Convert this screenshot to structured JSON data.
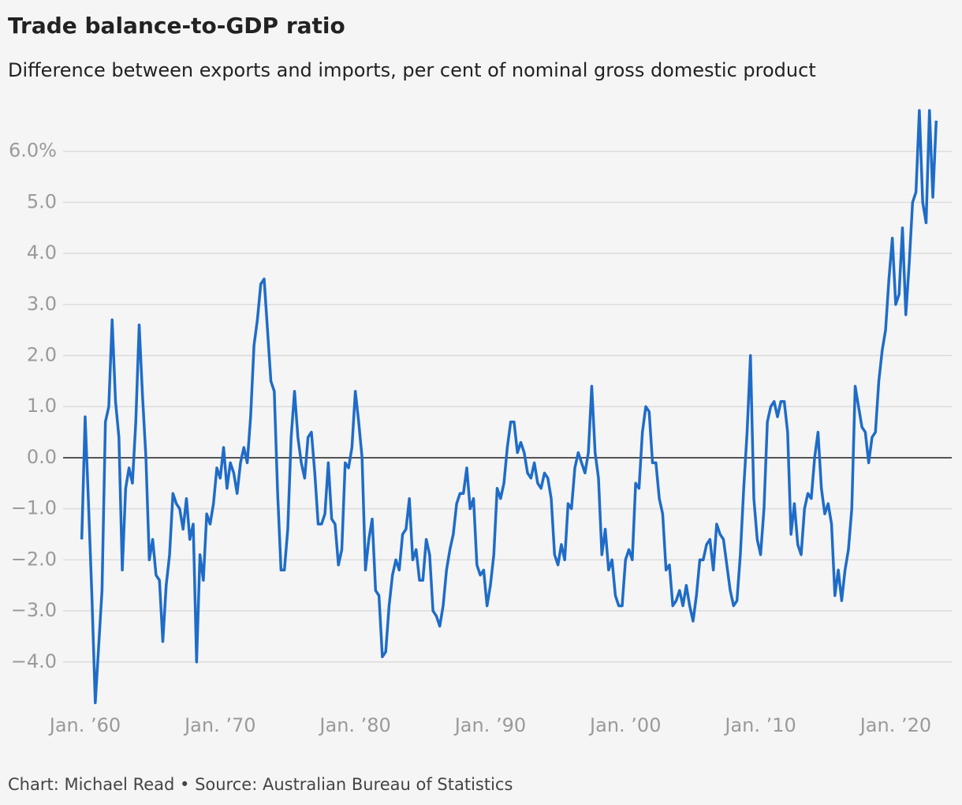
{
  "chart_data": {
    "type": "line",
    "title": "Trade balance-to-GDP ratio",
    "subtitle": "Difference between exports and imports, per cent of nominal gross domestic product",
    "footer": "Chart: Michael Read • Source: Australian Bureau of Statistics",
    "color": "#1f6cc8",
    "grid": true,
    "xlim": [
      1959.5,
      2023.25
    ],
    "xticks": [
      {
        "value": 1960,
        "label": "Jan. ’60"
      },
      {
        "value": 1970,
        "label": "Jan. ’70"
      },
      {
        "value": 1980,
        "label": "Jan. ’80"
      },
      {
        "value": 1990,
        "label": "Jan. ’90"
      },
      {
        "value": 2000,
        "label": "Jan. ’00"
      },
      {
        "value": 2010,
        "label": "Jan. ’10"
      },
      {
        "value": 2020,
        "label": "Jan. ’20"
      }
    ],
    "ylim": [
      -4.9,
      7.0
    ],
    "yticks": [
      {
        "value": -4,
        "label": "−4.0"
      },
      {
        "value": -3,
        "label": "−3.0"
      },
      {
        "value": -2,
        "label": "−2.0"
      },
      {
        "value": -1,
        "label": "−1.0"
      },
      {
        "value": 0,
        "label": "0.0"
      },
      {
        "value": 1,
        "label": "1.0"
      },
      {
        "value": 2,
        "label": "2.0"
      },
      {
        "value": 3,
        "label": "3.0"
      },
      {
        "value": 4,
        "label": "4.0"
      },
      {
        "value": 5,
        "label": "5.0"
      },
      {
        "value": 6,
        "label": "6.0%"
      }
    ],
    "x": [
      1959.75,
      1960,
      1960.25,
      1960.5,
      1960.75,
      1961,
      1961.25,
      1961.5,
      1961.75,
      1962,
      1962.25,
      1962.5,
      1962.75,
      1963,
      1963.25,
      1963.5,
      1963.75,
      1964,
      1964.25,
      1964.5,
      1964.75,
      1965,
      1965.25,
      1965.5,
      1965.75,
      1966,
      1966.25,
      1966.5,
      1966.75,
      1967,
      1967.25,
      1967.5,
      1967.75,
      1968,
      1968.25,
      1968.5,
      1968.75,
      1969,
      1969.25,
      1969.5,
      1969.75,
      1970,
      1970.25,
      1970.5,
      1970.75,
      1971,
      1971.25,
      1971.5,
      1971.75,
      1972,
      1972.25,
      1972.5,
      1972.75,
      1973,
      1973.25,
      1973.5,
      1973.75,
      1974,
      1974.25,
      1974.5,
      1974.75,
      1975,
      1975.25,
      1975.5,
      1975.75,
      1976,
      1976.25,
      1976.5,
      1976.75,
      1977,
      1977.25,
      1977.5,
      1977.75,
      1978,
      1978.25,
      1978.5,
      1978.75,
      1979,
      1979.25,
      1979.5,
      1979.75,
      1980,
      1980.25,
      1980.5,
      1980.75,
      1981,
      1981.25,
      1981.5,
      1981.75,
      1982,
      1982.25,
      1982.5,
      1982.75,
      1983,
      1983.25,
      1983.5,
      1983.75,
      1984,
      1984.25,
      1984.5,
      1984.75,
      1985,
      1985.25,
      1985.5,
      1985.75,
      1986,
      1986.25,
      1986.5,
      1986.75,
      1987,
      1987.25,
      1987.5,
      1987.75,
      1988,
      1988.25,
      1988.5,
      1988.75,
      1989,
      1989.25,
      1989.5,
      1989.75,
      1990,
      1990.25,
      1990.5,
      1990.75,
      1991,
      1991.25,
      1991.5,
      1991.75,
      1992,
      1992.25,
      1992.5,
      1992.75,
      1993,
      1993.25,
      1993.5,
      1993.75,
      1994,
      1994.25,
      1994.5,
      1994.75,
      1995,
      1995.25,
      1995.5,
      1995.75,
      1996,
      1996.25,
      1996.5,
      1996.75,
      1997,
      1997.25,
      1997.5,
      1997.75,
      1998,
      1998.25,
      1998.5,
      1998.75,
      1999,
      1999.25,
      1999.5,
      1999.75,
      2000,
      2000.25,
      2000.5,
      2000.75,
      2001,
      2001.25,
      2001.5,
      2001.75,
      2002,
      2002.25,
      2002.5,
      2002.75,
      2003,
      2003.25,
      2003.5,
      2003.75,
      2004,
      2004.25,
      2004.5,
      2004.75,
      2005,
      2005.25,
      2005.5,
      2005.75,
      2006,
      2006.25,
      2006.5,
      2006.75,
      2007,
      2007.25,
      2007.5,
      2007.75,
      2008,
      2008.25,
      2008.5,
      2008.75,
      2009,
      2009.25,
      2009.5,
      2009.75,
      2010,
      2010.25,
      2010.5,
      2010.75,
      2011,
      2011.25,
      2011.5,
      2011.75,
      2012,
      2012.25,
      2012.5,
      2012.75,
      2013,
      2013.25,
      2013.5,
      2013.75,
      2014,
      2014.25,
      2014.5,
      2014.75,
      2015,
      2015.25,
      2015.5,
      2015.75,
      2016,
      2016.25,
      2016.5,
      2016.75,
      2017,
      2017.25,
      2017.5,
      2017.75,
      2018,
      2018.25,
      2018.5,
      2018.75,
      2019,
      2019.25,
      2019.5,
      2019.75,
      2020,
      2020.25,
      2020.5,
      2020.75,
      2021,
      2021.25,
      2021.5,
      2021.75,
      2022,
      2022.25,
      2022.5,
      2022.75,
      2023
    ],
    "values": [
      -1.6,
      0.8,
      -0.9,
      -2.7,
      -4.8,
      -3.7,
      -2.6,
      0.7,
      1.0,
      2.7,
      1.1,
      0.4,
      -2.2,
      -0.6,
      -0.2,
      -0.5,
      0.7,
      2.6,
      1.2,
      0.0,
      -2.0,
      -1.6,
      -2.3,
      -2.4,
      -3.6,
      -2.5,
      -1.9,
      -0.7,
      -0.9,
      -1.0,
      -1.4,
      -0.8,
      -1.6,
      -1.3,
      -4.0,
      -1.9,
      -2.4,
      -1.1,
      -1.3,
      -0.9,
      -0.2,
      -0.4,
      0.2,
      -0.6,
      -0.1,
      -0.3,
      -0.7,
      -0.1,
      0.2,
      -0.1,
      0.8,
      2.2,
      2.7,
      3.4,
      3.5,
      2.5,
      1.5,
      1.3,
      -0.7,
      -2.2,
      -2.2,
      -1.4,
      0.4,
      1.3,
      0.4,
      -0.1,
      -0.4,
      0.4,
      0.5,
      -0.3,
      -1.3,
      -1.3,
      -1.1,
      -0.1,
      -1.2,
      -1.3,
      -2.1,
      -1.8,
      -0.1,
      -0.2,
      0.2,
      1.3,
      0.7,
      0.0,
      -2.2,
      -1.6,
      -1.2,
      -2.6,
      -2.7,
      -3.9,
      -3.8,
      -2.9,
      -2.3,
      -2.0,
      -2.2,
      -1.5,
      -1.4,
      -0.8,
      -2.0,
      -1.8,
      -2.4,
      -2.4,
      -1.6,
      -1.9,
      -3.0,
      -3.1,
      -3.3,
      -2.9,
      -2.2,
      -1.8,
      -1.5,
      -0.9,
      -0.7,
      -0.7,
      -0.2,
      -1.0,
      -0.8,
      -2.1,
      -2.3,
      -2.2,
      -2.9,
      -2.5,
      -1.9,
      -0.6,
      -0.8,
      -0.5,
      0.2,
      0.7,
      0.7,
      0.1,
      0.3,
      0.1,
      -0.3,
      -0.4,
      -0.1,
      -0.5,
      -0.6,
      -0.3,
      -0.4,
      -0.8,
      -1.9,
      -2.1,
      -1.7,
      -2.0,
      -0.9,
      -1.0,
      -0.2,
      0.1,
      -0.1,
      -0.3,
      0.1,
      1.4,
      0.1,
      -0.4,
      -1.9,
      -1.4,
      -2.2,
      -2.0,
      -2.7,
      -2.9,
      -2.9,
      -2.0,
      -1.8,
      -2.0,
      -0.5,
      -0.6,
      0.5,
      1.0,
      0.9,
      -0.1,
      -0.1,
      -0.8,
      -1.1,
      -2.2,
      -2.1,
      -2.9,
      -2.8,
      -2.6,
      -2.9,
      -2.5,
      -2.9,
      -3.2,
      -2.7,
      -2.0,
      -2.0,
      -1.7,
      -1.6,
      -2.2,
      -1.3,
      -1.5,
      -1.6,
      -2.1,
      -2.6,
      -2.9,
      -2.8,
      -1.9,
      -0.6,
      0.5,
      2.0,
      -0.8,
      -1.6,
      -1.9,
      -1.0,
      0.7,
      1.0,
      1.1,
      0.8,
      1.1,
      1.1,
      0.5,
      -1.5,
      -0.9,
      -1.7,
      -1.9,
      -1.0,
      -0.7,
      -0.8,
      0.0,
      0.5,
      -0.6,
      -1.1,
      -0.9,
      -1.3,
      -2.7,
      -2.2,
      -2.8,
      -2.2,
      -1.8,
      -1.0,
      1.4,
      1.0,
      0.6,
      0.5,
      -0.1,
      0.4,
      0.5,
      1.5,
      2.1,
      2.5,
      3.5,
      4.3,
      3.0,
      3.2,
      4.5,
      2.8,
      3.8,
      5.0,
      5.2,
      6.8,
      5.0,
      4.6,
      6.8,
      5.1,
      6.6
    ]
  }
}
